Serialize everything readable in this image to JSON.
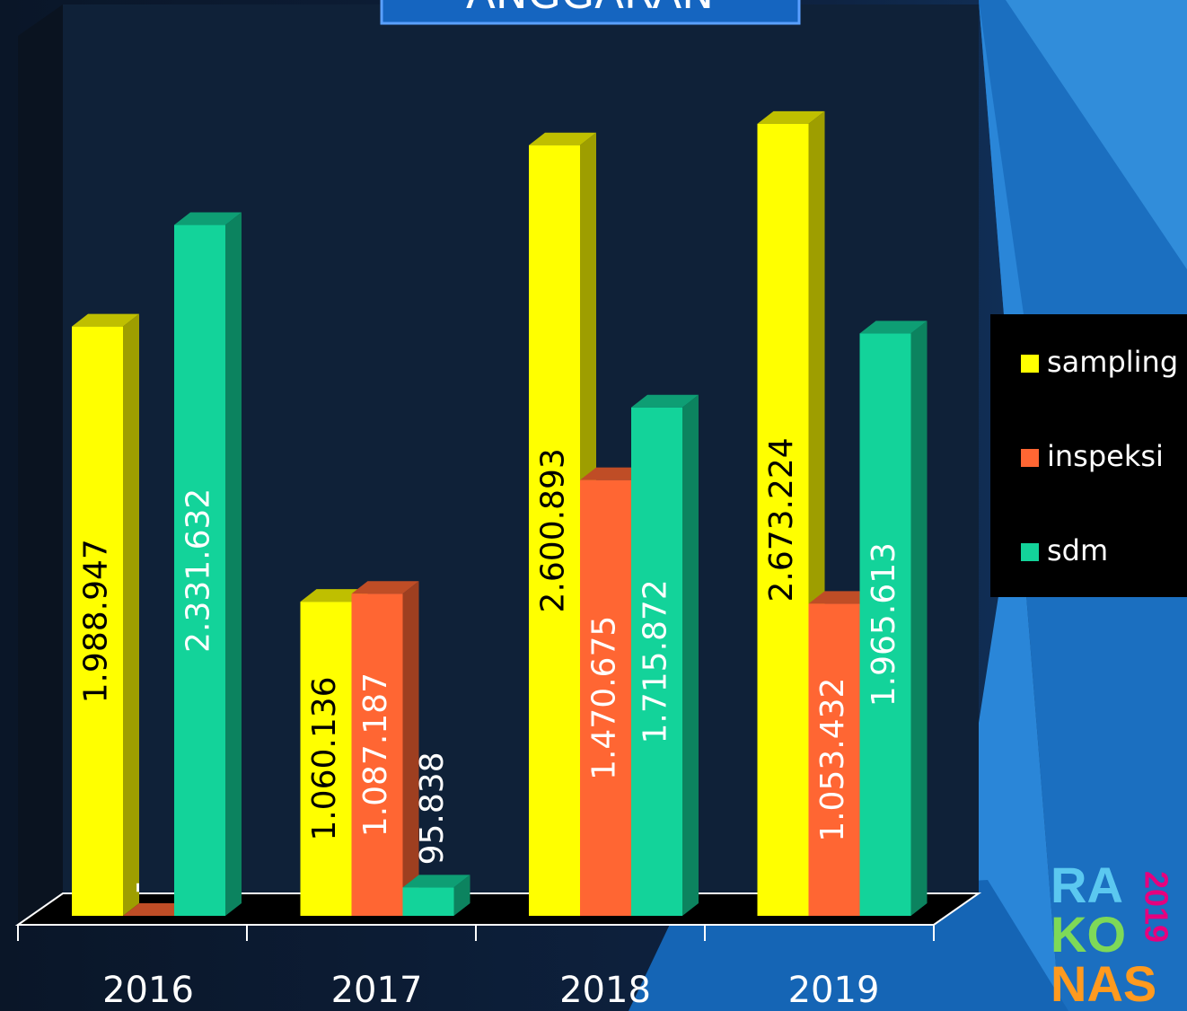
{
  "chart_data": {
    "type": "bar3d",
    "title": "ANGGARAN",
    "categories": [
      "2016",
      "2017",
      "2018",
      "2019"
    ],
    "series": [
      {
        "name": "sampling",
        "color": "#ffff00",
        "values": [
          1988947,
          1060136,
          2600893,
          2673224
        ],
        "value_labels": [
          "1.988.947",
          "1.060.136",
          "2.600.893",
          "2.673.224"
        ]
      },
      {
        "name": "inspeksi",
        "color": "#ff6633",
        "values": [
          0,
          1087187,
          1470675,
          1053432
        ],
        "value_labels": [
          "-",
          "1.087.187",
          "1.470.675",
          "1.053.432"
        ]
      },
      {
        "name": "sdm",
        "color": "#13d39a",
        "values": [
          2331632,
          95838,
          1715872,
          1965613
        ],
        "value_labels": [
          "2.331.632",
          "95.838",
          "1.715.872",
          "1.965.613"
        ]
      }
    ],
    "ylim": [
      0,
      3000000
    ],
    "legend": "right"
  },
  "logo": {
    "lines": [
      "RA",
      "KO",
      "NAS"
    ],
    "year": "2019"
  }
}
